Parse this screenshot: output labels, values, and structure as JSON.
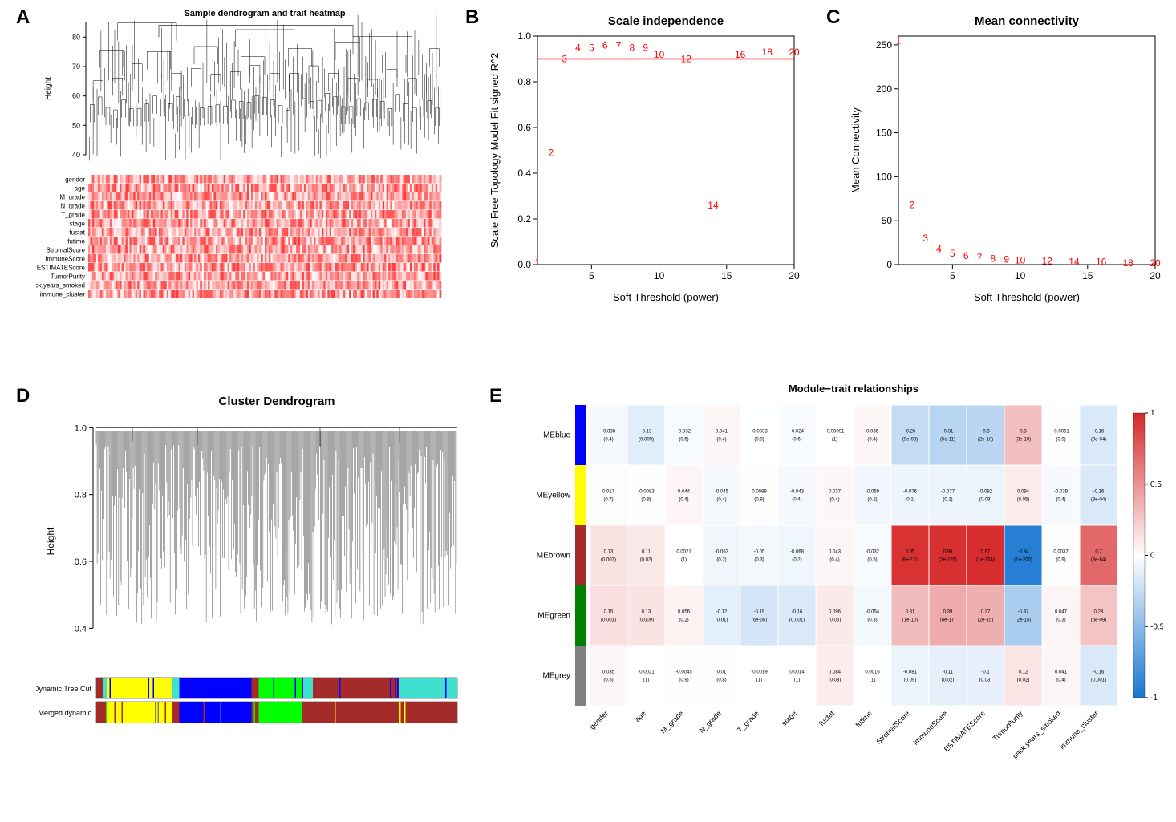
{
  "panels": {
    "A": {
      "label": "A",
      "title": "Sample dendrogram and trait heatmap",
      "ylabel": "Height",
      "yticks": [
        40,
        50,
        60,
        70,
        80
      ],
      "heat_rows": [
        "gender",
        "age",
        "M_grade",
        "N_grade",
        "T_grade",
        "stage",
        "fustat",
        "futime",
        "StromalScore",
        "ImmuneScore",
        "ESTIMATEScore",
        "TumorPurity",
        "pack.years_smoked",
        "immune_cluster"
      ],
      "heatmap_low_color": "#ffffff",
      "heatmap_high_color": "#d62728",
      "n_samples": 180,
      "dendro_color": "#000000"
    },
    "B": {
      "label": "B",
      "title": "Scale independence",
      "xlabel": "Soft Threshold (power)",
      "ylabel": "Scale Free Topology Model Fit signed R^2",
      "xticks": [
        5,
        10,
        15,
        20
      ],
      "yticks": [
        "0.0",
        "0.2",
        "0.4",
        "0.6",
        "0.8",
        "1.0"
      ],
      "xlim": [
        1,
        20
      ],
      "ylim": [
        0,
        1
      ],
      "hline_y": 0.9,
      "hline_color": "#ff0000",
      "points": [
        {
          "x": 1,
          "y": 0.01,
          "lab": "1"
        },
        {
          "x": 2,
          "y": 0.49,
          "lab": "2"
        },
        {
          "x": 3,
          "y": 0.9,
          "lab": "3"
        },
        {
          "x": 4,
          "y": 0.95,
          "lab": "4"
        },
        {
          "x": 5,
          "y": 0.95,
          "lab": "5"
        },
        {
          "x": 6,
          "y": 0.96,
          "lab": "6"
        },
        {
          "x": 7,
          "y": 0.96,
          "lab": "7"
        },
        {
          "x": 8,
          "y": 0.95,
          "lab": "8"
        },
        {
          "x": 9,
          "y": 0.95,
          "lab": "9"
        },
        {
          "x": 10,
          "y": 0.92,
          "lab": "10"
        },
        {
          "x": 12,
          "y": 0.9,
          "lab": "12"
        },
        {
          "x": 14,
          "y": 0.26,
          "lab": "14"
        },
        {
          "x": 16,
          "y": 0.92,
          "lab": "16"
        },
        {
          "x": 18,
          "y": 0.93,
          "lab": "18"
        },
        {
          "x": 20,
          "y": 0.93,
          "lab": "20"
        }
      ],
      "label_color": "#ff0000"
    },
    "C": {
      "label": "C",
      "title": "Mean connectivity",
      "xlabel": "Soft Threshold (power)",
      "ylabel": "Mean Connectivity",
      "xticks": [
        5,
        10,
        15,
        20
      ],
      "yticks": [
        0,
        50,
        100,
        150,
        200,
        250
      ],
      "xlim": [
        1,
        20
      ],
      "ylim": [
        0,
        260
      ],
      "points": [
        {
          "x": 1,
          "y": 255,
          "lab": "1"
        },
        {
          "x": 2,
          "y": 68,
          "lab": "2"
        },
        {
          "x": 3,
          "y": 30,
          "lab": "3"
        },
        {
          "x": 4,
          "y": 18,
          "lab": "4"
        },
        {
          "x": 5,
          "y": 13,
          "lab": "5"
        },
        {
          "x": 6,
          "y": 10,
          "lab": "6"
        },
        {
          "x": 7,
          "y": 8,
          "lab": "7"
        },
        {
          "x": 8,
          "y": 7,
          "lab": "8"
        },
        {
          "x": 9,
          "y": 6,
          "lab": "9"
        },
        {
          "x": 10,
          "y": 5,
          "lab": "10"
        },
        {
          "x": 12,
          "y": 4,
          "lab": "12"
        },
        {
          "x": 14,
          "y": 3,
          "lab": "14"
        },
        {
          "x": 16,
          "y": 3,
          "lab": "16"
        },
        {
          "x": 18,
          "y": 2,
          "lab": "18"
        },
        {
          "x": 20,
          "y": 2,
          "lab": "20"
        }
      ],
      "label_color": "#ff0000"
    },
    "D": {
      "label": "D",
      "title": "Cluster Dendrogram",
      "ylabel": "Height",
      "yticks": [
        "0.4",
        "0.6",
        "0.8",
        "1.0"
      ],
      "ylim": [
        0.3,
        1.02
      ],
      "band_labels": [
        "Dynamic Tree Cut",
        "Merged dynamic"
      ],
      "segments": [
        {
          "color": "#a52a2a",
          "w": 0.02
        },
        {
          "color": "#40e0d0",
          "w": 0.01
        },
        {
          "color": "#ffff00",
          "w": 0.18
        },
        {
          "color": "#40e0d0",
          "w": 0.02
        },
        {
          "color": "#0000ff",
          "w": 0.2
        },
        {
          "color": "#a52a2a",
          "w": 0.02
        },
        {
          "color": "#00ff00",
          "w": 0.12
        },
        {
          "color": "#40e0d0",
          "w": 0.03
        },
        {
          "color": "#a52a2a",
          "w": 0.24
        },
        {
          "color": "#40e0d0",
          "w": 0.16
        }
      ],
      "merged_segments": [
        {
          "color": "#a52a2a",
          "w": 0.02
        },
        {
          "color": "#a52a2a",
          "w": 0.01
        },
        {
          "color": "#ffff00",
          "w": 0.18
        },
        {
          "color": "#a52a2a",
          "w": 0.02
        },
        {
          "color": "#0000ff",
          "w": 0.2
        },
        {
          "color": "#a52a2a",
          "w": 0.02
        },
        {
          "color": "#00ff00",
          "w": 0.12
        },
        {
          "color": "#a52a2a",
          "w": 0.03
        },
        {
          "color": "#a52a2a",
          "w": 0.24
        },
        {
          "color": "#a52a2a",
          "w": 0.16
        }
      ]
    },
    "E": {
      "label": "E",
      "title": "Module−trait relationships",
      "modules": [
        {
          "name": "MEblue",
          "color": "#0000ff"
        },
        {
          "name": "MEyellow",
          "color": "#ffff00"
        },
        {
          "name": "MEbrown",
          "color": "#a52a2a"
        },
        {
          "name": "MEgreen",
          "color": "#008000"
        },
        {
          "name": "MEgrey",
          "color": "#808080"
        }
      ],
      "traits": [
        "gender",
        "age",
        "M_grade",
        "N_grade",
        "T_grade",
        "stage",
        "fustat",
        "futime",
        "StromalScore",
        "ImmuneScore",
        "ESTIMATEScore",
        "TumorPurity",
        "pack.years_smoked",
        "immune_cluster"
      ],
      "corr": [
        [
          -0.038,
          -0.13,
          -0.032,
          0.041,
          -0.0033,
          -0.024,
          -0.00091,
          0.036,
          -0.26,
          -0.31,
          -0.3,
          0.3,
          -0.0061,
          -0.16
        ],
        [
          0.017,
          -0.0083,
          0.044,
          -0.045,
          0.0089,
          -0.043,
          0.037,
          -0.059,
          -0.076,
          -0.077,
          -0.082,
          0.094,
          -0.039,
          -0.16
        ],
        [
          0.13,
          0.11,
          0.0021,
          -0.063,
          -0.05,
          -0.068,
          0.043,
          -0.032,
          0.95,
          0.96,
          0.97,
          -0.94,
          0.0037,
          0.7
        ],
        [
          0.15,
          0.13,
          0.056,
          -0.12,
          -0.19,
          -0.16,
          0.096,
          -0.054,
          0.31,
          0.39,
          0.37,
          -0.37,
          0.047,
          0.28
        ],
        [
          0.035,
          -0.0021,
          -0.0045,
          0.01,
          -0.0019,
          0.0014,
          0.084,
          0.0016,
          -0.081,
          -0.11,
          -0.1,
          0.12,
          0.041,
          -0.16
        ]
      ],
      "pval": [
        [
          "(0.4)",
          "(0.009)",
          "(0.5)",
          "(0.4)",
          "(0.9)",
          "(0.6)",
          "(1)",
          "(0.4)",
          "(9e-08)",
          "(5e-11)",
          "(2e-10)",
          "(3e-10)",
          "(0.9)",
          "(9e-04)"
        ],
        [
          "(0.7)",
          "(0.9)",
          "(0.4)",
          "(0.4)",
          "(0.9)",
          "(0.4)",
          "(0.4)",
          "(0.2)",
          "(0.1)",
          "(0.1)",
          "(0.09)",
          "(0.05)",
          "(0.4)",
          "(8e-04)"
        ],
        [
          "(0.007)",
          "(0.02)",
          "(1)",
          "(0.2)",
          "(0.3)",
          "(0.2)",
          "(0.4)",
          "(0.5)",
          "(6e-211)",
          "(2e-226)",
          "(1e-254)",
          "(1e-200)",
          "(0.9)",
          "(3e-64)"
        ],
        [
          "(0.001)",
          "(0.009)",
          "(0.2)",
          "(0.01)",
          "(6e-05)",
          "(0.001)",
          "(0.05)",
          "(0.3)",
          "(1e-10)",
          "(6e-17)",
          "(2e-15)",
          "(2e-15)",
          "(0.3)",
          "(6e-09)"
        ],
        [
          "(0.5)",
          "(1)",
          "(0.9)",
          "(0.8)",
          "(1)",
          "(1)",
          "(0.08)",
          "(1)",
          "(0.09)",
          "(0.02)",
          "(0.03)",
          "(0.02)",
          "(0.4)",
          "(0.001)"
        ]
      ],
      "scale_colors": {
        "neg": "#1976d2",
        "zero": "#ffffff",
        "pos": "#d62728"
      },
      "scale_ticks": [
        "1",
        "0.5",
        "0",
        "-0.5",
        "-1"
      ]
    }
  }
}
